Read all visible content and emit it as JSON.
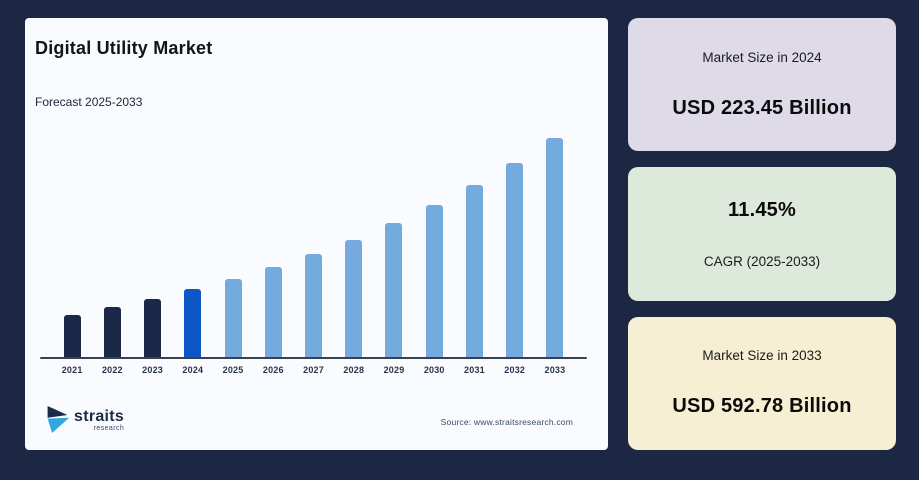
{
  "chart_card": {
    "title": "Digital Utility Market",
    "subtitle": "Forecast 2025-2033",
    "source": "Source: www.straitsresearch.com",
    "logo": {
      "text": "straits",
      "subtext": "research"
    }
  },
  "chart_data": {
    "type": "bar",
    "title": "Digital Utility Market",
    "subtitle": "Forecast 2025-2033",
    "unit": "USD Billion",
    "categories": [
      "2021",
      "2022",
      "2023",
      "2024",
      "2025",
      "2026",
      "2027",
      "2028",
      "2029",
      "2030",
      "2031",
      "2032",
      "2033"
    ],
    "values": [
      161.41,
      179.89,
      200.49,
      223.45,
      249.04,
      277.56,
      309.34,
      344.76,
      384.23,
      428.23,
      477.26,
      531.91,
      592.78
    ],
    "labeled_points": {
      "2024": 223.45,
      "2033": 592.78
    },
    "cagr_percent": 11.45,
    "estimation_note": "Only 2024 and 2033 values are labeled on screen; other bars estimated via the stated 11.45% CAGR",
    "bar_roles": [
      "historical",
      "historical",
      "historical",
      "base_year",
      "forecast",
      "forecast",
      "forecast",
      "forecast",
      "forecast",
      "forecast",
      "forecast",
      "forecast",
      "forecast"
    ],
    "colors": {
      "historical": "#1b2747",
      "base_year": "#0d56c5",
      "forecast": "#74aade"
    },
    "xlabel": "",
    "ylabel": "",
    "ylim": [
      0,
      650
    ],
    "grid": false,
    "legend": false
  },
  "panels": {
    "market_size_2024": {
      "label": "Market Size in 2024",
      "value": "USD 223.45 Billion",
      "bg": "#dfdae8"
    },
    "cagr": {
      "value": "11.45%",
      "label": "CAGR (2025-2033)",
      "bg": "#dde9da"
    },
    "market_size_2033": {
      "label": "Market Size in 2033",
      "value": "USD 592.78 Billion",
      "bg": "#f6efd3"
    }
  },
  "page": {
    "background": "#1c2743"
  }
}
